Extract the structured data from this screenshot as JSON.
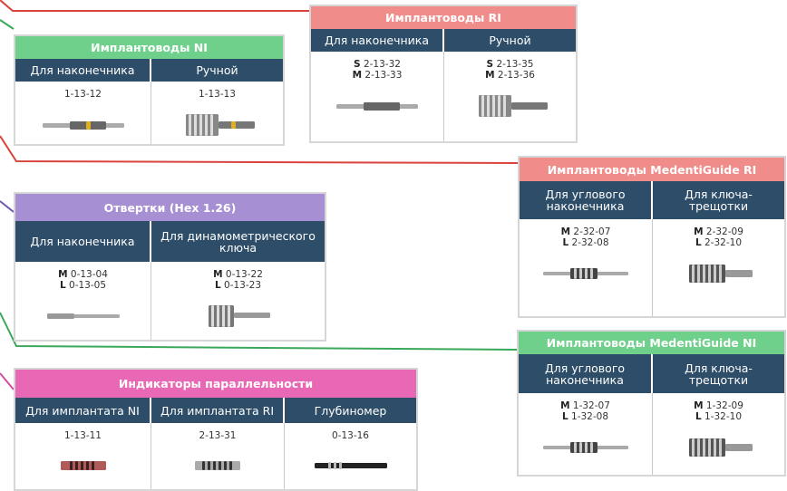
{
  "panels": [
    {
      "title": "Имплантоводы RI",
      "columns": [
        {
          "label": "Для наконечника",
          "codes": [
            {
              "size": "S",
              "code": "2-13-32"
            },
            {
              "size": "M",
              "code": "2-13-33"
            }
          ]
        },
        {
          "label": "Ручной",
          "codes": [
            {
              "size": "S",
              "code": "2-13-35"
            },
            {
              "size": "M",
              "code": "2-13-36"
            }
          ]
        }
      ]
    },
    {
      "title": "Имплантоводы NI",
      "columns": [
        {
          "label": "Для наконечника",
          "codes": [
            {
              "code": "1-13-12"
            }
          ]
        },
        {
          "label": "Ручной",
          "codes": [
            {
              "code": "1-13-13"
            }
          ]
        }
      ]
    },
    {
      "title": "Имплантоводы MedentiGuide RI",
      "columns": [
        {
          "label": "Для углового наконечника",
          "codes": [
            {
              "size": "M",
              "code": "2-32-07"
            },
            {
              "size": "L",
              "code": "2-32-08"
            }
          ]
        },
        {
          "label": "Для ключа-трещотки",
          "codes": [
            {
              "size": "M",
              "code": "2-32-09"
            },
            {
              "size": "L",
              "code": "2-32-10"
            }
          ]
        }
      ]
    },
    {
      "title": "Отвертки (Hex 1.26)",
      "columns": [
        {
          "label": "Для наконечника",
          "codes": [
            {
              "size": "M",
              "code": "0-13-04"
            },
            {
              "size": "L",
              "code": "0-13-05"
            }
          ]
        },
        {
          "label": "Для динамометрического ключа",
          "codes": [
            {
              "size": "M",
              "code": "0-13-22"
            },
            {
              "size": "L",
              "code": "0-13-23"
            }
          ]
        }
      ]
    },
    {
      "title": "Имплантоводы MedentiGuide NI",
      "columns": [
        {
          "label": "Для углового наконечника",
          "codes": [
            {
              "size": "M",
              "code": "1-32-07"
            },
            {
              "size": "L",
              "code": "1-32-08"
            }
          ]
        },
        {
          "label": "Для ключа-трещотки",
          "codes": [
            {
              "size": "M",
              "code": "1-32-09"
            },
            {
              "size": "L",
              "code": "1-32-10"
            }
          ]
        }
      ]
    },
    {
      "title": "Индикаторы параллельности",
      "columns": [
        {
          "label": "Для имплантата NI",
          "codes": [
            {
              "code": "1-13-11"
            }
          ]
        },
        {
          "label": "Для имплантата RI",
          "codes": [
            {
              "code": "2-13-31"
            }
          ]
        },
        {
          "label": "Глубиномер",
          "codes": [
            {
              "code": "0-13-16"
            }
          ]
        }
      ]
    }
  ]
}
